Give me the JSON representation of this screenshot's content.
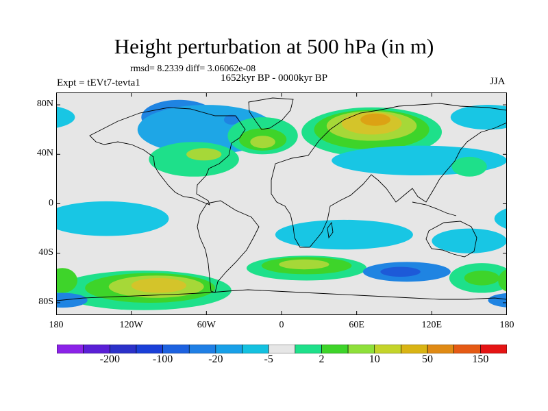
{
  "title": "Height perturbation at 500 hPa (in m)",
  "stats": "rmsd= 8.2339 diff= 3.06062e-08",
  "period": "1652kyr BP - 0000kyr BP",
  "experiment": "Expt = tEVt7-tevta1",
  "season": "JJA",
  "latitude_ticks": [
    {
      "label": "80N",
      "lat": 80
    },
    {
      "label": "40N",
      "lat": 40
    },
    {
      "label": "0",
      "lat": 0
    },
    {
      "label": "40S",
      "lat": -40
    },
    {
      "label": "80S",
      "lat": -80
    }
  ],
  "longitude_ticks": [
    {
      "label": "180",
      "lon": -180
    },
    {
      "label": "120W",
      "lon": -120
    },
    {
      "label": "60W",
      "lon": -60
    },
    {
      "label": "0",
      "lon": 0
    },
    {
      "label": "60E",
      "lon": 60
    },
    {
      "label": "120E",
      "lon": 120
    },
    {
      "label": "180",
      "lon": 180
    }
  ],
  "colorbar": {
    "colors": [
      "#8b22e8",
      "#5a1fd6",
      "#2b31c9",
      "#1a3fd8",
      "#1d62e0",
      "#1f7fe5",
      "#18a0e8",
      "#14c1e0",
      "#e6e6e6",
      "#1ee08a",
      "#3ed42a",
      "#8ee03a",
      "#c4d42a",
      "#d9b414",
      "#e08a14",
      "#e55a14",
      "#e51414"
    ],
    "labels": [
      {
        "text": "-200",
        "boundary": 2
      },
      {
        "text": "-100",
        "boundary": 4
      },
      {
        "text": "-20",
        "boundary": 6
      },
      {
        "text": "-5",
        "boundary": 8
      },
      {
        "text": "2",
        "boundary": 10
      },
      {
        "text": "10",
        "boundary": 12
      },
      {
        "text": "50",
        "boundary": 14
      },
      {
        "text": "150",
        "boundary": 16
      }
    ]
  },
  "map_palette": {
    "grey": "#e6e6e6",
    "cyan": "#18c6e4",
    "lightblue": "#1ea6e6",
    "blue": "#1f84e2",
    "darkblue": "#1d5ad8",
    "teal": "#1ee08a",
    "green": "#3ed42a",
    "yellowgreen": "#a6d838",
    "yellow": "#d4c42a",
    "orange": "#dca214",
    "darkorange": "#e08a14"
  },
  "field_features": [
    {
      "lon": -82,
      "lat": 70,
      "rlon": 30,
      "rlat": 14,
      "color": "blue"
    },
    {
      "lon": -60,
      "lat": 60,
      "rlon": 55,
      "rlat": 20,
      "color": "lightblue"
    },
    {
      "lon": 72,
      "lat": 58,
      "rlon": 56,
      "rlat": 20,
      "color": "teal"
    },
    {
      "lon": 72,
      "lat": 60,
      "rlon": 46,
      "rlat": 16,
      "color": "green"
    },
    {
      "lon": 72,
      "lat": 63,
      "rlon": 36,
      "rlat": 12,
      "color": "yellowgreen"
    },
    {
      "lon": 72,
      "lat": 65,
      "rlon": 24,
      "rlat": 9,
      "color": "yellow"
    },
    {
      "lon": 75,
      "lat": 68,
      "rlon": 12,
      "rlat": 5,
      "color": "orange"
    },
    {
      "lon": -15,
      "lat": 55,
      "rlon": 28,
      "rlat": 15,
      "color": "teal"
    },
    {
      "lon": -15,
      "lat": 52,
      "rlon": 19,
      "rlat": 9,
      "color": "green"
    },
    {
      "lon": -15,
      "lat": 50,
      "rlon": 10,
      "rlat": 5,
      "color": "yellowgreen"
    },
    {
      "lon": -70,
      "lat": 36,
      "rlon": 36,
      "rlat": 14,
      "color": "teal"
    },
    {
      "lon": -62,
      "lat": 40,
      "rlon": 14,
      "rlat": 5,
      "color": "yellowgreen"
    },
    {
      "lon": -40,
      "lat": 68,
      "rlon": 6,
      "rlat": 4,
      "color": "blue"
    },
    {
      "lon": 110,
      "lat": 35,
      "rlon": 70,
      "rlat": 12,
      "color": "cyan"
    },
    {
      "lon": 165,
      "lat": 70,
      "rlon": 30,
      "rlat": 10,
      "color": "cyan"
    },
    {
      "lon": 150,
      "lat": 30,
      "rlon": 14,
      "rlat": 8,
      "color": "teal"
    },
    {
      "lon": -140,
      "lat": -12,
      "rlon": 50,
      "rlat": 14,
      "color": "cyan"
    },
    {
      "lon": 50,
      "lat": -25,
      "rlon": 55,
      "rlat": 12,
      "color": "cyan"
    },
    {
      "lon": 150,
      "lat": -30,
      "rlon": 30,
      "rlat": 10,
      "color": "cyan"
    },
    {
      "lon": -110,
      "lat": -70,
      "rlon": 70,
      "rlat": 16,
      "color": "teal"
    },
    {
      "lon": -105,
      "lat": -68,
      "rlon": 52,
      "rlat": 12,
      "color": "green"
    },
    {
      "lon": -100,
      "lat": -67,
      "rlon": 38,
      "rlat": 9,
      "color": "yellowgreen"
    },
    {
      "lon": -98,
      "lat": -66,
      "rlon": 22,
      "rlat": 6,
      "color": "yellow"
    },
    {
      "lon": 20,
      "lat": -52,
      "rlon": 48,
      "rlat": 10,
      "color": "teal"
    },
    {
      "lon": 20,
      "lat": -50,
      "rlon": 36,
      "rlat": 7,
      "color": "green"
    },
    {
      "lon": 18,
      "lat": -49,
      "rlon": 20,
      "rlat": 4,
      "color": "yellowgreen"
    },
    {
      "lon": 100,
      "lat": -55,
      "rlon": 35,
      "rlat": 8,
      "color": "blue"
    },
    {
      "lon": 95,
      "lat": -55,
      "rlon": 16,
      "rlat": 4,
      "color": "darkblue"
    },
    {
      "lon": 160,
      "lat": -60,
      "rlon": 26,
      "rlat": 12,
      "color": "teal"
    },
    {
      "lon": 160,
      "lat": -60,
      "rlon": 14,
      "rlat": 6,
      "color": "green"
    },
    {
      "lon": -175,
      "lat": -62,
      "rlon": 12,
      "rlat": 10,
      "color": "green"
    },
    {
      "lon": -175,
      "lat": -78,
      "rlon": 20,
      "rlat": 6,
      "color": "blue"
    }
  ]
}
